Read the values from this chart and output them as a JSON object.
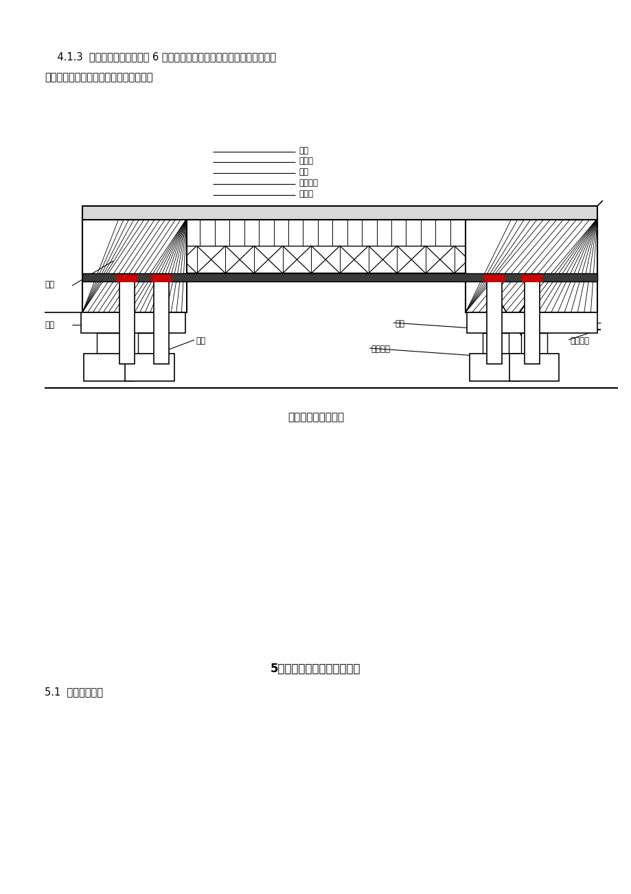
{
  "page_bg": "#ffffff",
  "para_text_1": "    4.1.3  钢管立柱垂直方向每隔 6 米在平面上设置了平面联系，减小了钢管立",
  "para_text_2": "柱的自长度，增加了钢管立柱的整体性。",
  "diagram_caption": "贝雷支架总体布置图",
  "section_title": "5、施工工艺流程及操作要点",
  "section_sub": "5.1  施工工艺流程",
  "layer_labels": [
    "箱梁",
    "竹胶板",
    "方木",
    "钢管支架",
    "贝雷片"
  ],
  "label_墩柱": "墩柱",
  "label_横梁": "横梁",
  "label_承台": "承台",
  "label_基础": "基础",
  "label_钢管立柱": "钢管立柱",
  "label_槽钢联系": "槽钢联系",
  "text_color": "#000000",
  "line_color": "#000000",
  "red_color": "#cc0000"
}
